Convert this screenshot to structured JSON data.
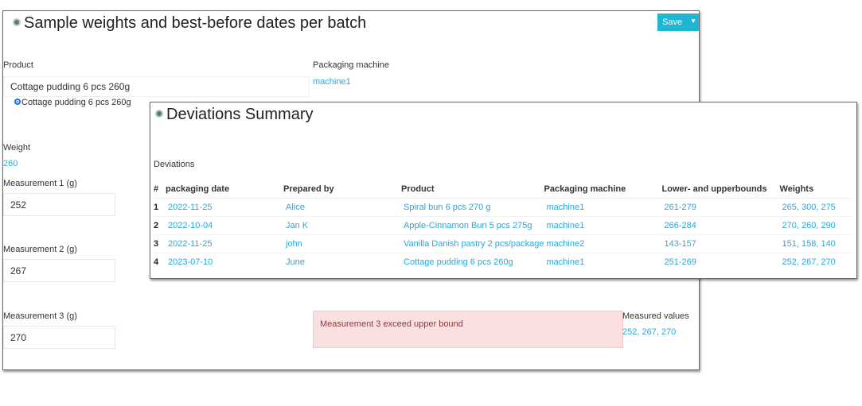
{
  "form": {
    "title": "Sample weights and best-before dates per batch",
    "save_label": "Save",
    "product_label": "Product",
    "product_value": "Cottage pudding 6 pcs 260g",
    "product_option": "Cottage pudding 6 pcs 260g",
    "packaging_machine_label": "Packaging machine",
    "packaging_machine_value": "machine1",
    "weight_label": "Weight",
    "weight_value": "260",
    "measurement1_label": "Measurement 1 (g)",
    "measurement1_value": "252",
    "measurement2_label": "Measurement 2 (g)",
    "measurement2_value": "267",
    "measurement3_label": "Measurement 3 (g)",
    "measurement3_value": "270",
    "alert_text": "Measurement 3 exceed upper bound",
    "measured_values_label": "Measured values",
    "measured_values_value": "252, 267, 270"
  },
  "summary": {
    "title": "Deviations Summary",
    "section_label": "Deviations",
    "columns": [
      "#",
      "packaging date",
      "Prepared by",
      "Product",
      "Packaging machine",
      "Lower- and upperbounds",
      "Weights"
    ],
    "rows": [
      [
        "1",
        "2022-11-25",
        "Alice",
        "Spiral bun 6 pcs 270 g",
        "machine1",
        "261-279",
        "265, 300, 275"
      ],
      [
        "2",
        "2022-10-04",
        "Jan K",
        "Apple-Cinnamon Bun 5 pcs 275g",
        "machine1",
        "266-284",
        "270, 260, 290"
      ],
      [
        "3",
        "2022-11-25",
        "john",
        "Vanilla Danish pastry 2 pcs/package",
        "machine2",
        "143-157",
        "151, 158, 140"
      ],
      [
        "4",
        "2023-07-10",
        "June",
        "Cottage pudding 6 pcs 260g",
        "machine1",
        "251-269",
        "252, 267, 270"
      ]
    ]
  }
}
